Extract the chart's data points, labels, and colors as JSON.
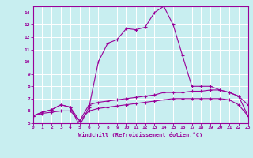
{
  "xlabel": "Windchill (Refroidissement éolien,°C)",
  "background_color": "#c8eef0",
  "grid_color": "#ffffff",
  "line_color": "#990099",
  "xlim": [
    0,
    23
  ],
  "ylim": [
    5,
    14.5
  ],
  "xticks": [
    0,
    1,
    2,
    3,
    4,
    5,
    6,
    7,
    8,
    9,
    10,
    11,
    12,
    13,
    14,
    15,
    16,
    17,
    18,
    19,
    20,
    21,
    22,
    23
  ],
  "yticks": [
    5,
    6,
    7,
    8,
    9,
    10,
    11,
    12,
    13,
    14
  ],
  "curve1_x": [
    0,
    1,
    2,
    3,
    4,
    5,
    6,
    7,
    8,
    9,
    10,
    11,
    12,
    13,
    14,
    15,
    16,
    17,
    18,
    19,
    20,
    21,
    22,
    23
  ],
  "curve1_y": [
    5.6,
    5.9,
    6.1,
    6.5,
    6.3,
    4.8,
    6.3,
    10.0,
    11.5,
    11.8,
    12.7,
    12.6,
    12.8,
    14.0,
    14.5,
    13.0,
    10.5,
    8.0,
    8.0,
    8.0,
    7.7,
    7.5,
    7.2,
    6.5
  ],
  "curve2_x": [
    0,
    1,
    2,
    3,
    4,
    5,
    6,
    7,
    8,
    9,
    10,
    11,
    12,
    13,
    14,
    15,
    16,
    17,
    18,
    19,
    20,
    21,
    22,
    23
  ],
  "curve2_y": [
    5.6,
    5.9,
    6.1,
    6.5,
    6.3,
    5.2,
    6.5,
    6.7,
    6.8,
    6.9,
    7.0,
    7.1,
    7.2,
    7.3,
    7.5,
    7.5,
    7.5,
    7.6,
    7.6,
    7.7,
    7.7,
    7.5,
    7.2,
    5.6
  ],
  "curve3_x": [
    0,
    1,
    2,
    3,
    4,
    5,
    6,
    7,
    8,
    9,
    10,
    11,
    12,
    13,
    14,
    15,
    16,
    17,
    18,
    19,
    20,
    21,
    22,
    23
  ],
  "curve3_y": [
    5.6,
    5.8,
    5.9,
    6.0,
    6.0,
    5.2,
    6.0,
    6.2,
    6.3,
    6.4,
    6.5,
    6.6,
    6.7,
    6.8,
    6.9,
    7.0,
    7.0,
    7.0,
    7.0,
    7.0,
    7.0,
    6.9,
    6.5,
    5.6
  ]
}
